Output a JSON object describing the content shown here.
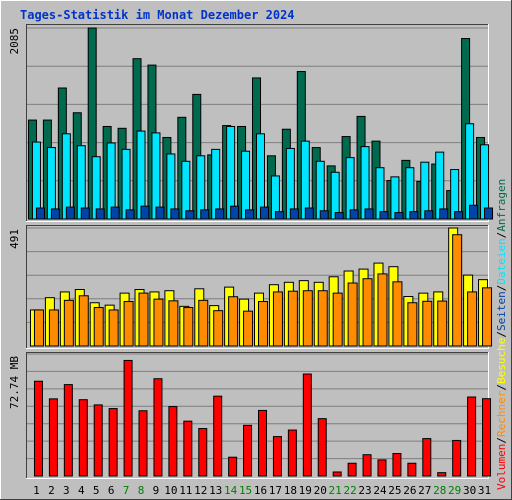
{
  "title": "Tages-Statistik im Monat Dezember 2024",
  "colors": {
    "background": "#bfbfbf",
    "title": "#0033cc",
    "hits": "#006a4e",
    "files": "#00e5ff",
    "pages": "#0044aa",
    "visits": "#ffff00",
    "sites": "#ff8c00",
    "kbytes": "#ff0000",
    "weekday_label": "#000000",
    "weekend_label": "#008000"
  },
  "chart_data": [
    {
      "type": "bar",
      "ylabel": "2085",
      "ylim": [
        0,
        2085
      ],
      "categories": [
        "1",
        "2",
        "3",
        "4",
        "5",
        "6",
        "7",
        "8",
        "9",
        "10",
        "11",
        "12",
        "13",
        "14",
        "15",
        "16",
        "17",
        "18",
        "19",
        "20",
        "21",
        "22",
        "23",
        "24",
        "25",
        "26",
        "27",
        "28",
        "29",
        "30",
        "31"
      ],
      "weekend": [
        false,
        false,
        false,
        false,
        false,
        false,
        true,
        true,
        false,
        false,
        false,
        false,
        false,
        true,
        true,
        false,
        false,
        false,
        false,
        false,
        true,
        true,
        false,
        false,
        false,
        false,
        false,
        true,
        true,
        false,
        false
      ],
      "series": [
        {
          "name": "Anfragen",
          "color_key": "hits",
          "values": [
            1080,
            1080,
            1430,
            1160,
            2085,
            1010,
            990,
            1750,
            1680,
            890,
            1110,
            1360,
            700,
            1020,
            1010,
            1540,
            690,
            980,
            1610,
            780,
            580,
            900,
            1120,
            850,
            420,
            640,
            410,
            600,
            310,
            1970,
            890
          ]
        },
        {
          "name": "Dateien",
          "color_key": "files",
          "values": [
            840,
            780,
            930,
            800,
            680,
            830,
            760,
            960,
            940,
            710,
            630,
            690,
            760,
            1010,
            740,
            930,
            470,
            770,
            850,
            630,
            510,
            670,
            790,
            560,
            460,
            560,
            620,
            730,
            540,
            1040,
            810
          ]
        },
        {
          "name": "Seiten",
          "color_key": "pages",
          "values": [
            120,
            110,
            130,
            120,
            110,
            130,
            100,
            140,
            130,
            110,
            90,
            100,
            110,
            140,
            100,
            130,
            80,
            110,
            120,
            90,
            70,
            100,
            110,
            80,
            70,
            80,
            90,
            110,
            80,
            150,
            120
          ]
        }
      ]
    },
    {
      "type": "bar",
      "ylabel": "491",
      "ylim": [
        0,
        491
      ],
      "categories": [
        "1",
        "2",
        "3",
        "4",
        "5",
        "6",
        "7",
        "8",
        "9",
        "10",
        "11",
        "12",
        "13",
        "14",
        "15",
        "16",
        "17",
        "18",
        "19",
        "20",
        "21",
        "22",
        "23",
        "24",
        "25",
        "26",
        "27",
        "28",
        "29",
        "30",
        "31"
      ],
      "series": [
        {
          "name": "Besuche",
          "color_key": "visits",
          "values": [
            150,
            201,
            225,
            235,
            180,
            170,
            220,
            235,
            225,
            230,
            165,
            238,
            168,
            245,
            195,
            220,
            255,
            265,
            272,
            265,
            288,
            312,
            320,
            345,
            330,
            206,
            220,
            225,
            491,
            295,
            276
          ]
        },
        {
          "name": "Rechner",
          "color_key": "sites",
          "values": [
            150,
            150,
            190,
            209,
            160,
            150,
            185,
            220,
            195,
            188,
            160,
            190,
            147,
            205,
            145,
            185,
            225,
            228,
            230,
            230,
            220,
            262,
            280,
            300,
            267,
            180,
            186,
            187,
            463,
            225,
            242
          ]
        }
      ]
    },
    {
      "type": "bar",
      "ylabel": "72.74 MB",
      "ylim": [
        0,
        72.74
      ],
      "categories": [
        "1",
        "2",
        "3",
        "4",
        "5",
        "6",
        "7",
        "8",
        "9",
        "10",
        "11",
        "12",
        "13",
        "14",
        "15",
        "16",
        "17",
        "18",
        "19",
        "20",
        "21",
        "22",
        "23",
        "24",
        "25",
        "26",
        "27",
        "28",
        "29",
        "30",
        "31"
      ],
      "series": [
        {
          "name": "Volumen",
          "color_key": "kbytes",
          "values": [
            56.5,
            46.0,
            54.5,
            45.5,
            42.4,
            40.2,
            68.9,
            38.9,
            58.0,
            41.4,
            32.7,
            28.3,
            47.6,
            11.2,
            30.2,
            39.1,
            23.5,
            27.4,
            60.8,
            34.2,
            2.4,
            7.6,
            12.7,
            9.6,
            13.4,
            7.6,
            22.3,
            2.0,
            21.2,
            47.1,
            46.1
          ]
        }
      ]
    }
  ],
  "legend_right": [
    {
      "label": "Volumen",
      "color_key": "kbytes"
    },
    {
      "label": "Rechner",
      "color_key": "sites"
    },
    {
      "label": "Besuche",
      "color_key": "visits"
    },
    {
      "label": "Seiten",
      "color_key": "pages"
    },
    {
      "label": "Dateien",
      "color_key": "files"
    },
    {
      "label": "Anfragen",
      "color_key": "hits"
    }
  ],
  "legend_separator": "/"
}
